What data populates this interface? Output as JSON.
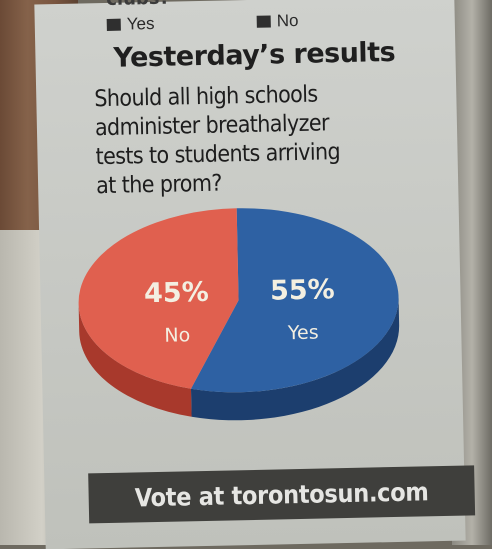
{
  "top_text": "clubs?",
  "legend_options": [
    {
      "label": "Yes"
    },
    {
      "label": "No"
    }
  ],
  "headline": "Yesterday’s results",
  "question_lines": [
    "Should all high schools",
    "administer breathalyzer",
    "tests to students arriving",
    "at the prom?"
  ],
  "footer": "Vote at torontosun.com",
  "colors": {
    "no": "#e0604f",
    "no_dark": "#a8392c",
    "yes": "#2e61a3",
    "yes_dark": "#1c3e6e",
    "label": "#f3efe1"
  },
  "chart_data": {
    "type": "pie",
    "slices": [
      {
        "label": "No",
        "value": 45,
        "value_label": "45%"
      },
      {
        "label": "Yes",
        "value": 55,
        "value_label": "55%"
      }
    ]
  }
}
